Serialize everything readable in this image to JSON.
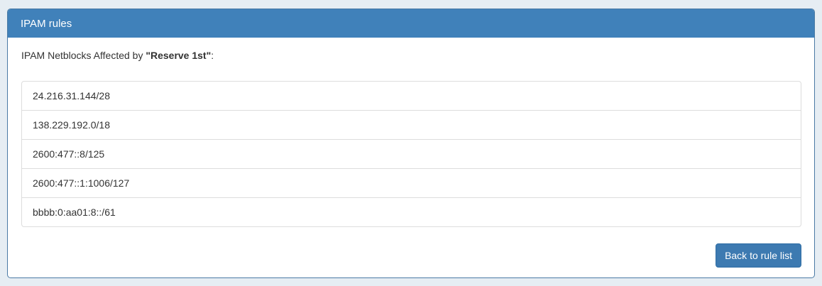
{
  "panel": {
    "title": "IPAM rules",
    "subtitle": {
      "prefix": "IPAM Netblocks Affected by ",
      "rule_name": "\"Reserve 1st\"",
      "suffix": ":"
    },
    "netblocks": [
      "24.216.31.144/28",
      "138.229.192.0/18",
      "2600:477::8/125",
      "2600:477::1:1006/127",
      "bbbb:0:aa01:8::/61"
    ],
    "back_button_label": "Back to rule list"
  },
  "colors": {
    "page_bg": "#e6edf3",
    "header_bg": "#4081ba",
    "panel_border": "#4a7aa5",
    "button_bg": "#3d7ab1",
    "button_border": "#2e6da4",
    "list_border": "#dddddd",
    "text": "#333333"
  }
}
